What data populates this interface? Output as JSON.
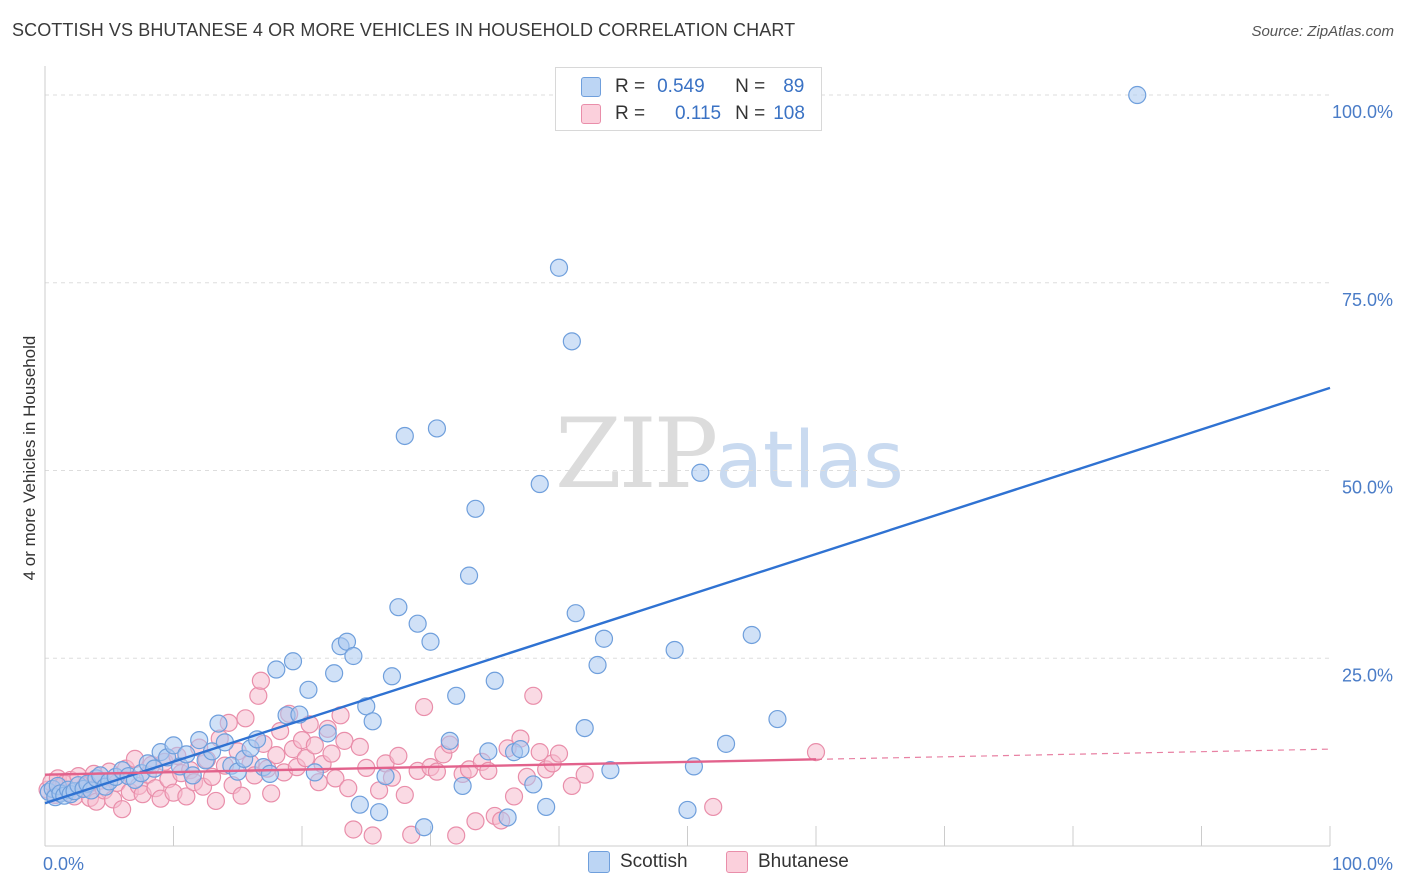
{
  "header": {
    "title": "SCOTTISH VS BHUTANESE 4 OR MORE VEHICLES IN HOUSEHOLD CORRELATION CHART",
    "source": "Source: ZipAtlas.com"
  },
  "watermark": {
    "zip": "ZIP",
    "atlas": "atlas"
  },
  "legend": {
    "rows": [
      {
        "r_label": "R =",
        "r_value": "0.549",
        "n_label": "N =",
        "n_value": "89"
      },
      {
        "r_label": "R =",
        "r_value": "0.115",
        "n_label": "N =",
        "n_value": "108"
      }
    ]
  },
  "colors": {
    "scottish_fill": "#a9c8f0",
    "scottish_stroke": "#6f9fdc",
    "scottish_line": "#2f72d2",
    "bhutanese_fill": "#f6bccd",
    "bhutanese_stroke": "#e98eaa",
    "bhutanese_line": "#e2628c",
    "grid": "#dddddd",
    "axis_text": "#4a7cc7"
  },
  "chart_data": {
    "type": "scatter",
    "title": "SCOTTISH VS BHUTANESE 4 OR MORE VEHICLES IN HOUSEHOLD CORRELATION CHART",
    "xlabel": "",
    "ylabel": "4 or more Vehicles in Household",
    "xlim": [
      0,
      100
    ],
    "ylim": [
      0,
      102
    ],
    "x_tick_labels": [
      "0.0%",
      "100.0%"
    ],
    "y_ticks": [
      25,
      50,
      75,
      100
    ],
    "y_tick_labels": [
      "25.0%",
      "50.0%",
      "75.0%",
      "100.0%"
    ],
    "series": [
      {
        "name": "Scottish",
        "R": 0.549,
        "N": 89,
        "trend": {
          "x": [
            0,
            100
          ],
          "y": [
            5.7,
            61.0
          ],
          "dashed_from": null
        },
        "points": [
          [
            0.3,
            7.2
          ],
          [
            0.6,
            7.6
          ],
          [
            0.8,
            6.5
          ],
          [
            1.0,
            8.0
          ],
          [
            1.2,
            7.0
          ],
          [
            1.5,
            6.7
          ],
          [
            1.8,
            7.5
          ],
          [
            2.0,
            6.9
          ],
          [
            2.3,
            7.3
          ],
          [
            2.6,
            8.1
          ],
          [
            3.0,
            7.6
          ],
          [
            3.3,
            8.3
          ],
          [
            3.6,
            7.4
          ],
          [
            4.0,
            9.0
          ],
          [
            4.3,
            9.4
          ],
          [
            4.7,
            7.9
          ],
          [
            5.0,
            8.6
          ],
          [
            5.5,
            9.2
          ],
          [
            6.0,
            10.1
          ],
          [
            6.5,
            9.3
          ],
          [
            7.0,
            8.8
          ],
          [
            7.5,
            9.7
          ],
          [
            8.0,
            11.0
          ],
          [
            8.5,
            10.3
          ],
          [
            9.0,
            12.5
          ],
          [
            9.5,
            11.8
          ],
          [
            10.0,
            13.4
          ],
          [
            10.5,
            10.6
          ],
          [
            11.0,
            12.2
          ],
          [
            11.5,
            9.4
          ],
          [
            12.0,
            14.1
          ],
          [
            12.5,
            11.4
          ],
          [
            13.0,
            12.6
          ],
          [
            13.5,
            16.3
          ],
          [
            14.0,
            13.8
          ],
          [
            14.5,
            10.7
          ],
          [
            15.0,
            9.9
          ],
          [
            15.5,
            11.6
          ],
          [
            16.0,
            13.0
          ],
          [
            16.5,
            14.2
          ],
          [
            17.0,
            10.5
          ],
          [
            17.5,
            9.6
          ],
          [
            18.0,
            23.5
          ],
          [
            18.8,
            17.4
          ],
          [
            19.3,
            24.6
          ],
          [
            19.8,
            17.5
          ],
          [
            20.5,
            20.8
          ],
          [
            21.0,
            9.8
          ],
          [
            22.0,
            15.0
          ],
          [
            22.5,
            23.0
          ],
          [
            23.0,
            26.6
          ],
          [
            23.5,
            27.2
          ],
          [
            24.0,
            25.3
          ],
          [
            24.5,
            5.5
          ],
          [
            25.0,
            18.6
          ],
          [
            25.5,
            16.6
          ],
          [
            26.0,
            4.5
          ],
          [
            26.5,
            9.3
          ],
          [
            27.0,
            22.6
          ],
          [
            27.5,
            31.8
          ],
          [
            28.0,
            54.6
          ],
          [
            29.0,
            29.6
          ],
          [
            29.5,
            2.5
          ],
          [
            30.0,
            27.2
          ],
          [
            30.5,
            55.6
          ],
          [
            31.5,
            14.0
          ],
          [
            32.0,
            20.0
          ],
          [
            32.5,
            8.0
          ],
          [
            33.0,
            36.0
          ],
          [
            33.5,
            44.9
          ],
          [
            34.5,
            12.6
          ],
          [
            35.0,
            22.0
          ],
          [
            36.0,
            3.8
          ],
          [
            36.5,
            12.5
          ],
          [
            37.0,
            12.9
          ],
          [
            38.0,
            8.2
          ],
          [
            38.5,
            48.2
          ],
          [
            39.0,
            5.2
          ],
          [
            40.0,
            77.0
          ],
          [
            41.0,
            67.2
          ],
          [
            41.3,
            31.0
          ],
          [
            42.0,
            15.7
          ],
          [
            43.0,
            24.1
          ],
          [
            43.5,
            27.6
          ],
          [
            44.0,
            10.1
          ],
          [
            49.0,
            26.1
          ],
          [
            50.0,
            4.8
          ],
          [
            50.5,
            10.6
          ],
          [
            51.0,
            49.7
          ],
          [
            53.0,
            13.6
          ],
          [
            55.0,
            28.1
          ],
          [
            57.0,
            16.9
          ],
          [
            85.0,
            100.0
          ]
        ]
      },
      {
        "name": "Bhutanese",
        "R": 0.115,
        "N": 108,
        "trend": {
          "x": [
            0,
            100
          ],
          "y": [
            9.5,
            12.9
          ],
          "dashed_from": 60
        },
        "points": [
          [
            0.2,
            7.5
          ],
          [
            0.5,
            8.5
          ],
          [
            0.8,
            6.8
          ],
          [
            1.0,
            9.0
          ],
          [
            1.2,
            7.9
          ],
          [
            1.5,
            8.3
          ],
          [
            1.8,
            7.1
          ],
          [
            2.0,
            8.8
          ],
          [
            2.3,
            6.6
          ],
          [
            2.6,
            9.3
          ],
          [
            3.0,
            7.7
          ],
          [
            3.3,
            8.1
          ],
          [
            3.5,
            6.4
          ],
          [
            3.8,
            9.6
          ],
          [
            4.0,
            5.9
          ],
          [
            4.3,
            8.7
          ],
          [
            4.6,
            7.4
          ],
          [
            5.0,
            9.9
          ],
          [
            5.3,
            6.2
          ],
          [
            5.6,
            8.4
          ],
          [
            6.0,
            4.9
          ],
          [
            6.3,
            10.3
          ],
          [
            6.6,
            7.2
          ],
          [
            7.0,
            11.6
          ],
          [
            7.3,
            8.0
          ],
          [
            7.6,
            6.9
          ],
          [
            8.0,
            9.5
          ],
          [
            8.3,
            10.8
          ],
          [
            8.6,
            7.7
          ],
          [
            9.0,
            6.3
          ],
          [
            9.3,
            11.2
          ],
          [
            9.6,
            8.9
          ],
          [
            10.0,
            7.1
          ],
          [
            10.3,
            12.0
          ],
          [
            10.6,
            9.7
          ],
          [
            11.0,
            6.6
          ],
          [
            11.3,
            10.1
          ],
          [
            11.6,
            8.5
          ],
          [
            12.0,
            13.1
          ],
          [
            12.3,
            7.9
          ],
          [
            12.6,
            11.5
          ],
          [
            13.0,
            9.2
          ],
          [
            13.3,
            6.0
          ],
          [
            13.6,
            14.3
          ],
          [
            14.0,
            10.7
          ],
          [
            14.3,
            16.4
          ],
          [
            14.6,
            8.1
          ],
          [
            15.0,
            12.6
          ],
          [
            15.3,
            6.7
          ],
          [
            15.6,
            17.0
          ],
          [
            16.0,
            11.0
          ],
          [
            16.3,
            9.4
          ],
          [
            16.6,
            20.0
          ],
          [
            16.8,
            22.0
          ],
          [
            17.0,
            13.6
          ],
          [
            17.3,
            10.3
          ],
          [
            17.6,
            7.0
          ],
          [
            18.0,
            12.1
          ],
          [
            18.3,
            15.3
          ],
          [
            18.6,
            9.8
          ],
          [
            19.0,
            17.6
          ],
          [
            19.3,
            12.9
          ],
          [
            19.6,
            10.5
          ],
          [
            20.0,
            14.1
          ],
          [
            20.3,
            11.7
          ],
          [
            20.6,
            16.2
          ],
          [
            21.0,
            13.4
          ],
          [
            21.3,
            8.5
          ],
          [
            21.6,
            10.9
          ],
          [
            22.0,
            15.6
          ],
          [
            22.3,
            12.3
          ],
          [
            22.6,
            9.0
          ],
          [
            23.0,
            17.4
          ],
          [
            23.3,
            14.0
          ],
          [
            23.6,
            7.7
          ],
          [
            24.0,
            2.2
          ],
          [
            24.5,
            13.2
          ],
          [
            25.0,
            10.4
          ],
          [
            25.5,
            1.4
          ],
          [
            26.0,
            7.4
          ],
          [
            26.5,
            11.0
          ],
          [
            27.0,
            9.1
          ],
          [
            27.5,
            12.0
          ],
          [
            28.0,
            6.8
          ],
          [
            28.5,
            1.5
          ],
          [
            29.0,
            10.0
          ],
          [
            29.5,
            18.5
          ],
          [
            30.0,
            10.5
          ],
          [
            30.5,
            9.9
          ],
          [
            31.0,
            12.2
          ],
          [
            31.5,
            13.5
          ],
          [
            32.0,
            1.4
          ],
          [
            32.5,
            9.6
          ],
          [
            33.0,
            10.2
          ],
          [
            33.5,
            3.3
          ],
          [
            34.0,
            11.2
          ],
          [
            34.5,
            10.0
          ],
          [
            35.0,
            4.0
          ],
          [
            35.5,
            3.4
          ],
          [
            36.0,
            13.0
          ],
          [
            36.5,
            6.6
          ],
          [
            37.0,
            14.3
          ],
          [
            37.5,
            9.2
          ],
          [
            38.0,
            20.0
          ],
          [
            38.5,
            12.5
          ],
          [
            39.0,
            10.2
          ],
          [
            39.5,
            11.0
          ],
          [
            40.0,
            12.3
          ],
          [
            41.0,
            8.0
          ],
          [
            42.0,
            9.5
          ],
          [
            52.0,
            5.2
          ],
          [
            60.0,
            12.5
          ]
        ]
      }
    ]
  },
  "bottom_legend": {
    "items": [
      "Scottish",
      "Bhutanese"
    ]
  }
}
